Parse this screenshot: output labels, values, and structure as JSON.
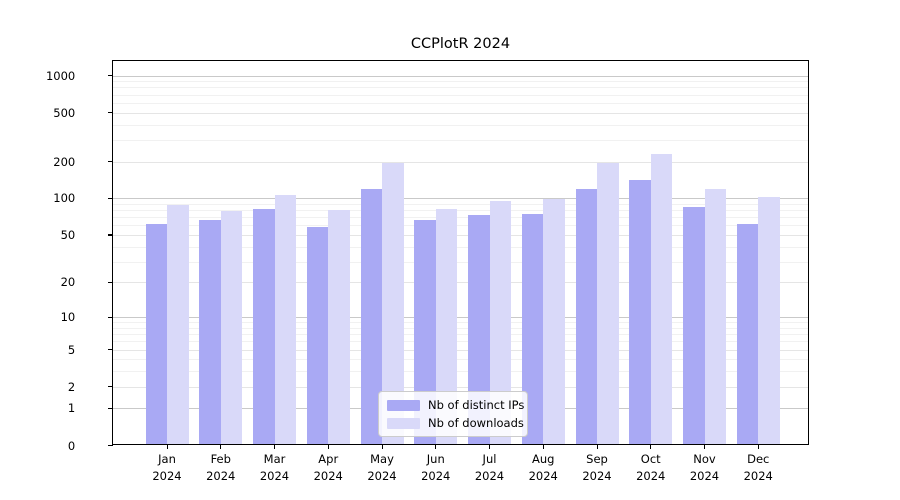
{
  "title": "CCPlotR 2024",
  "legend": {
    "items": [
      {
        "label": "Nb of distinct IPs",
        "color": "#a9a9f4"
      },
      {
        "label": "Nb of downloads",
        "color": "#d9d9f9"
      }
    ]
  },
  "axes": {
    "y_tick_labels": [
      "0",
      "1",
      "2",
      "5",
      "10",
      "20",
      "50",
      "100",
      "200",
      "500",
      "1000"
    ],
    "x_tick_year": "2024"
  },
  "colors": {
    "bar_dark": "#a9a9f4",
    "bar_light": "#d9d9f9",
    "grid_major": "#c9c9c9",
    "grid_minor_labeled": "#e5e5e5",
    "grid_minor": "#f1f1f1",
    "spine": "#000000"
  },
  "chart_data": {
    "type": "bar",
    "title": "CCPlotR 2024",
    "xlabel": "",
    "ylabel": "",
    "categories": [
      "Jan 2024",
      "Feb 2024",
      "Mar 2024",
      "Apr 2024",
      "May 2024",
      "Jun 2024",
      "Jul 2024",
      "Aug 2024",
      "Sep 2024",
      "Oct 2024",
      "Nov 2024",
      "Dec 2024"
    ],
    "series": [
      {
        "name": "Nb of distinct IPs",
        "color": "#a9a9f4",
        "values": [
          60,
          65,
          80,
          57,
          116,
          64,
          71,
          73,
          117,
          137,
          82,
          60
        ]
      },
      {
        "name": "Nb of downloads",
        "color": "#d9d9f9",
        "values": [
          85,
          76,
          104,
          78,
          188,
          80,
          92,
          96,
          188,
          222,
          115,
          99
        ]
      }
    ],
    "yscale": "log1p",
    "yticks": [
      0,
      1,
      2,
      5,
      10,
      20,
      50,
      100,
      200,
      500,
      1000
    ],
    "y_minor_ticks": [
      3,
      4,
      6,
      7,
      8,
      9,
      30,
      40,
      60,
      70,
      80,
      90,
      300,
      400,
      600,
      700,
      800,
      900
    ],
    "ylim": [
      0,
      1300
    ],
    "grid": true,
    "legend_position": "lower center"
  }
}
